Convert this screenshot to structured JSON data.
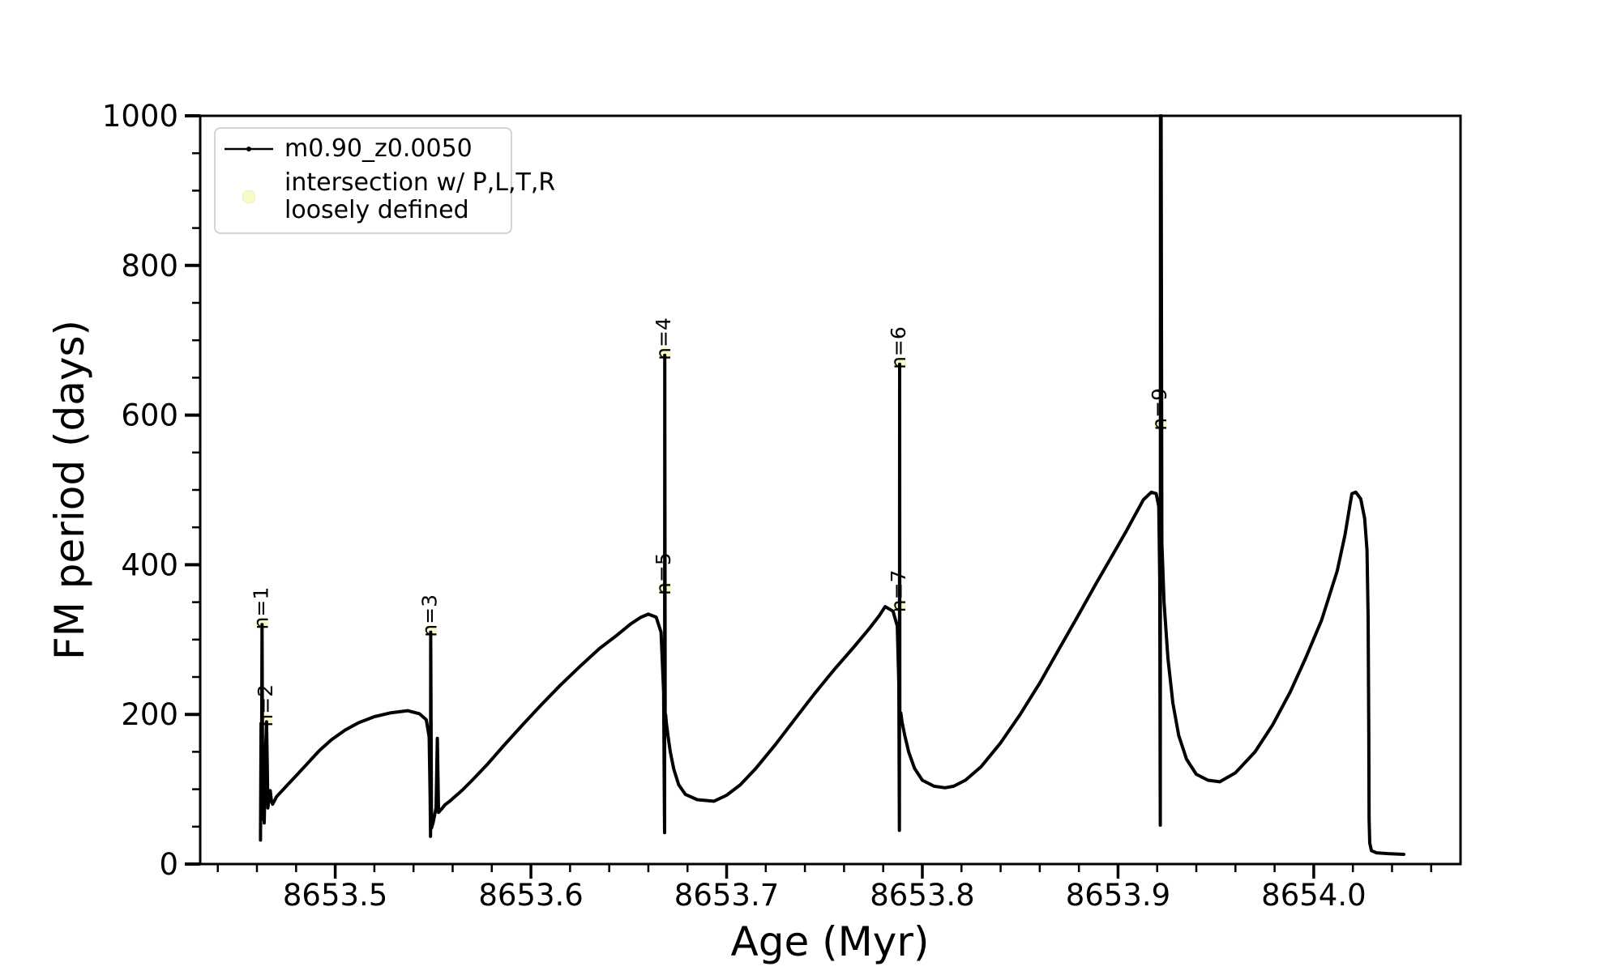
{
  "figure": {
    "background": "#ffffff",
    "curve_color": "#000000",
    "intersection_marker_color": "#f9f9cd",
    "intersection_marker_edge": "#f0f0b4"
  },
  "labels": {
    "xlabel": "Age (Myr)",
    "ylabel": "FM period (days)"
  },
  "legend": {
    "items": [
      {
        "label": "m0.90_z0.0050",
        "sample": "line-dot-marker",
        "color": "#000000"
      },
      {
        "label_line1": "intersection w/ P,L,T,R",
        "label_line2": "loosely defined",
        "sample": "circle-marker",
        "color": "#f9f9cd"
      }
    ]
  },
  "chart_data": {
    "type": "line",
    "title": "",
    "xlabel": "Age (Myr)",
    "ylabel": "FM period (days)",
    "xlim": [
      8653.431,
      8654.075
    ],
    "ylim": [
      0,
      1000
    ],
    "x_major_ticks": [
      8653.5,
      8653.6,
      8653.7,
      8653.8,
      8653.9,
      8654.0
    ],
    "x_tick_decimals": 1,
    "x_minor_start": 8653.44,
    "x_minor_end": 8654.06,
    "x_minor_step": 0.02,
    "y_major_ticks": [
      0,
      200,
      400,
      600,
      800,
      1000
    ],
    "y_minor_step": 50,
    "grid": false,
    "legend_position": "upper left",
    "annotations": [
      {
        "label": "n=1",
        "x": 8653.4626,
        "y": 322
      },
      {
        "label": "n=2",
        "x": 8653.4649,
        "y": 192
      },
      {
        "label": "n=3",
        "x": 8653.5488,
        "y": 312
      },
      {
        "label": "n=4",
        "x": 8653.6684,
        "y": 682
      },
      {
        "label": "n=5",
        "x": 8653.6684,
        "y": 368
      },
      {
        "label": "n=6",
        "x": 8653.7884,
        "y": 670
      },
      {
        "label": "n=7",
        "x": 8653.7884,
        "y": 345
      },
      {
        "label": "n=9",
        "x": 8653.9218,
        "y": 588
      }
    ],
    "series": [
      {
        "name": "m0.90_z0.0050",
        "points": [
          [
            8653.4618,
            32
          ],
          [
            8653.4621,
            188
          ],
          [
            8653.4623,
            90
          ],
          [
            8653.4626,
            320
          ],
          [
            8653.4629,
            120
          ],
          [
            8653.4631,
            60
          ],
          [
            8653.4634,
            100
          ],
          [
            8653.4637,
            55
          ],
          [
            8653.4645,
            160
          ],
          [
            8653.4649,
            190
          ],
          [
            8653.4653,
            130
          ],
          [
            8653.4656,
            75
          ],
          [
            8653.4663,
            90
          ],
          [
            8653.4668,
            98
          ],
          [
            8653.4674,
            84
          ],
          [
            8653.468,
            80
          ],
          [
            8653.469,
            85
          ],
          [
            8653.47,
            90
          ],
          [
            8653.475,
            104
          ],
          [
            8653.48,
            118
          ],
          [
            8653.486,
            135
          ],
          [
            8653.492,
            152
          ],
          [
            8653.498,
            166
          ],
          [
            8653.505,
            179
          ],
          [
            8653.512,
            189
          ],
          [
            8653.52,
            197
          ],
          [
            8653.528,
            202
          ],
          [
            8653.537,
            205
          ],
          [
            8653.543,
            201
          ],
          [
            8653.5465,
            193
          ],
          [
            8653.548,
            170
          ],
          [
            8653.5485,
            90
          ],
          [
            8653.5487,
            37
          ],
          [
            8653.5488,
            310
          ],
          [
            8653.5492,
            48
          ],
          [
            8653.55,
            55
          ],
          [
            8653.5515,
            75
          ],
          [
            8653.5522,
            168
          ],
          [
            8653.5528,
            69
          ],
          [
            8653.5545,
            74
          ],
          [
            8653.556,
            79
          ],
          [
            8653.5585,
            84
          ],
          [
            8653.565,
            99
          ],
          [
            8653.57,
            112
          ],
          [
            8653.578,
            134
          ],
          [
            8653.586,
            158
          ],
          [
            8653.595,
            184
          ],
          [
            8653.605,
            212
          ],
          [
            8653.615,
            239
          ],
          [
            8653.625,
            264
          ],
          [
            8653.635,
            288
          ],
          [
            8653.644,
            306
          ],
          [
            8653.651,
            321
          ],
          [
            8653.6563,
            330
          ],
          [
            8653.66,
            334
          ],
          [
            8653.664,
            330
          ],
          [
            8653.6665,
            310
          ],
          [
            8653.6678,
            230
          ],
          [
            8653.6682,
            80
          ],
          [
            8653.6683,
            42
          ],
          [
            8653.6684,
            680
          ],
          [
            8653.6686,
            195
          ],
          [
            8653.6688,
            200
          ],
          [
            8653.6692,
            188
          ],
          [
            8653.67,
            172
          ],
          [
            8653.6712,
            150
          ],
          [
            8653.673,
            127
          ],
          [
            8653.6755,
            106
          ],
          [
            8653.679,
            93
          ],
          [
            8653.685,
            86
          ],
          [
            8653.6935,
            84
          ],
          [
            8653.7,
            92
          ],
          [
            8653.707,
            106
          ],
          [
            8653.715,
            128
          ],
          [
            8653.725,
            160
          ],
          [
            8653.735,
            194
          ],
          [
            8653.745,
            228
          ],
          [
            8653.755,
            260
          ],
          [
            8653.765,
            290
          ],
          [
            8653.773,
            315
          ],
          [
            8653.778,
            332
          ],
          [
            8653.781,
            344
          ],
          [
            8653.785,
            338
          ],
          [
            8653.7872,
            318
          ],
          [
            8653.788,
            240
          ],
          [
            8653.7882,
            90
          ],
          [
            8653.7883,
            45
          ],
          [
            8653.7884,
            668
          ],
          [
            8653.7885,
            195
          ],
          [
            8653.789,
            202
          ],
          [
            8653.7896,
            190
          ],
          [
            8653.791,
            172
          ],
          [
            8653.793,
            150
          ],
          [
            8653.796,
            128
          ],
          [
            8653.8,
            112
          ],
          [
            8653.806,
            104
          ],
          [
            8653.8116,
            102
          ],
          [
            8653.816,
            104
          ],
          [
            8653.822,
            112
          ],
          [
            8653.83,
            130
          ],
          [
            8653.84,
            162
          ],
          [
            8653.85,
            200
          ],
          [
            8653.86,
            242
          ],
          [
            8653.87,
            288
          ],
          [
            8653.88,
            334
          ],
          [
            8653.889,
            376
          ],
          [
            8653.897,
            412
          ],
          [
            8653.904,
            444
          ],
          [
            8653.909,
            468
          ],
          [
            8653.913,
            487
          ],
          [
            8653.917,
            497
          ],
          [
            8653.9195,
            495
          ],
          [
            8653.9208,
            478
          ],
          [
            8653.9213,
            380
          ],
          [
            8653.9215,
            120
          ],
          [
            8653.9216,
            52
          ],
          [
            8653.9217,
            1000
          ],
          [
            8653.922,
            1000
          ],
          [
            8653.9224,
            430
          ],
          [
            8653.9235,
            350
          ],
          [
            8653.9255,
            275
          ],
          [
            8653.928,
            215
          ],
          [
            8653.931,
            172
          ],
          [
            8653.935,
            140
          ],
          [
            8653.94,
            120
          ],
          [
            8653.946,
            112
          ],
          [
            8653.952,
            110
          ],
          [
            8653.96,
            122
          ],
          [
            8653.97,
            150
          ],
          [
            8653.979,
            186
          ],
          [
            8653.988,
            230
          ],
          [
            8653.996,
            276
          ],
          [
            8654.004,
            326
          ],
          [
            8654.012,
            392
          ],
          [
            8654.016,
            440
          ],
          [
            8654.0185,
            480
          ],
          [
            8654.0195,
            495
          ],
          [
            8654.0215,
            497
          ],
          [
            8654.024,
            488
          ],
          [
            8654.026,
            462
          ],
          [
            8654.0272,
            420
          ],
          [
            8654.0278,
            330
          ],
          [
            8654.0281,
            180
          ],
          [
            8654.0283,
            60
          ],
          [
            8654.0286,
            28
          ],
          [
            8654.0295,
            18
          ],
          [
            8654.032,
            15
          ],
          [
            8654.038,
            14
          ],
          [
            8654.046,
            13
          ]
        ]
      }
    ]
  }
}
